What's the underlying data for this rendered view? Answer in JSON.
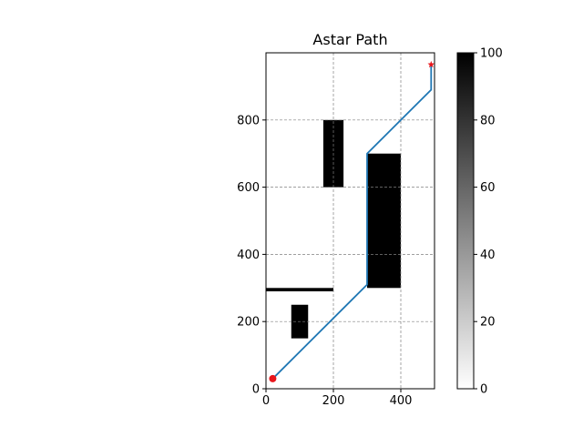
{
  "chart_data": {
    "type": "line",
    "title": "Astar Path",
    "xlabel": "",
    "ylabel": "",
    "xlim": [
      0,
      500
    ],
    "ylim": [
      0,
      1000
    ],
    "xticks": [
      0,
      200,
      400
    ],
    "yticks": [
      0,
      200,
      400,
      600,
      800
    ],
    "grid": true,
    "obstacles": [
      {
        "x0": 0,
        "x1": 200,
        "y0": 290,
        "y1": 300
      },
      {
        "x0": 75,
        "x1": 125,
        "y0": 150,
        "y1": 250
      },
      {
        "x0": 170,
        "x1": 230,
        "y0": 600,
        "y1": 800
      },
      {
        "x0": 300,
        "x1": 400,
        "y0": 300,
        "y1": 700
      }
    ],
    "path": {
      "color": "#1f77b4",
      "x": [
        20,
        300,
        300,
        490,
        490
      ],
      "y": [
        30,
        310,
        700,
        890,
        965
      ]
    },
    "start": {
      "x": 20,
      "y": 30,
      "color": "#e8161c",
      "marker": "circle"
    },
    "goal": {
      "x": 490,
      "y": 965,
      "color": "#e8161c",
      "marker": "star"
    },
    "colorbar": {
      "min": 0,
      "max": 100,
      "ticks": [
        0,
        20,
        40,
        60,
        80,
        100
      ],
      "colormap": "gray_r"
    }
  }
}
